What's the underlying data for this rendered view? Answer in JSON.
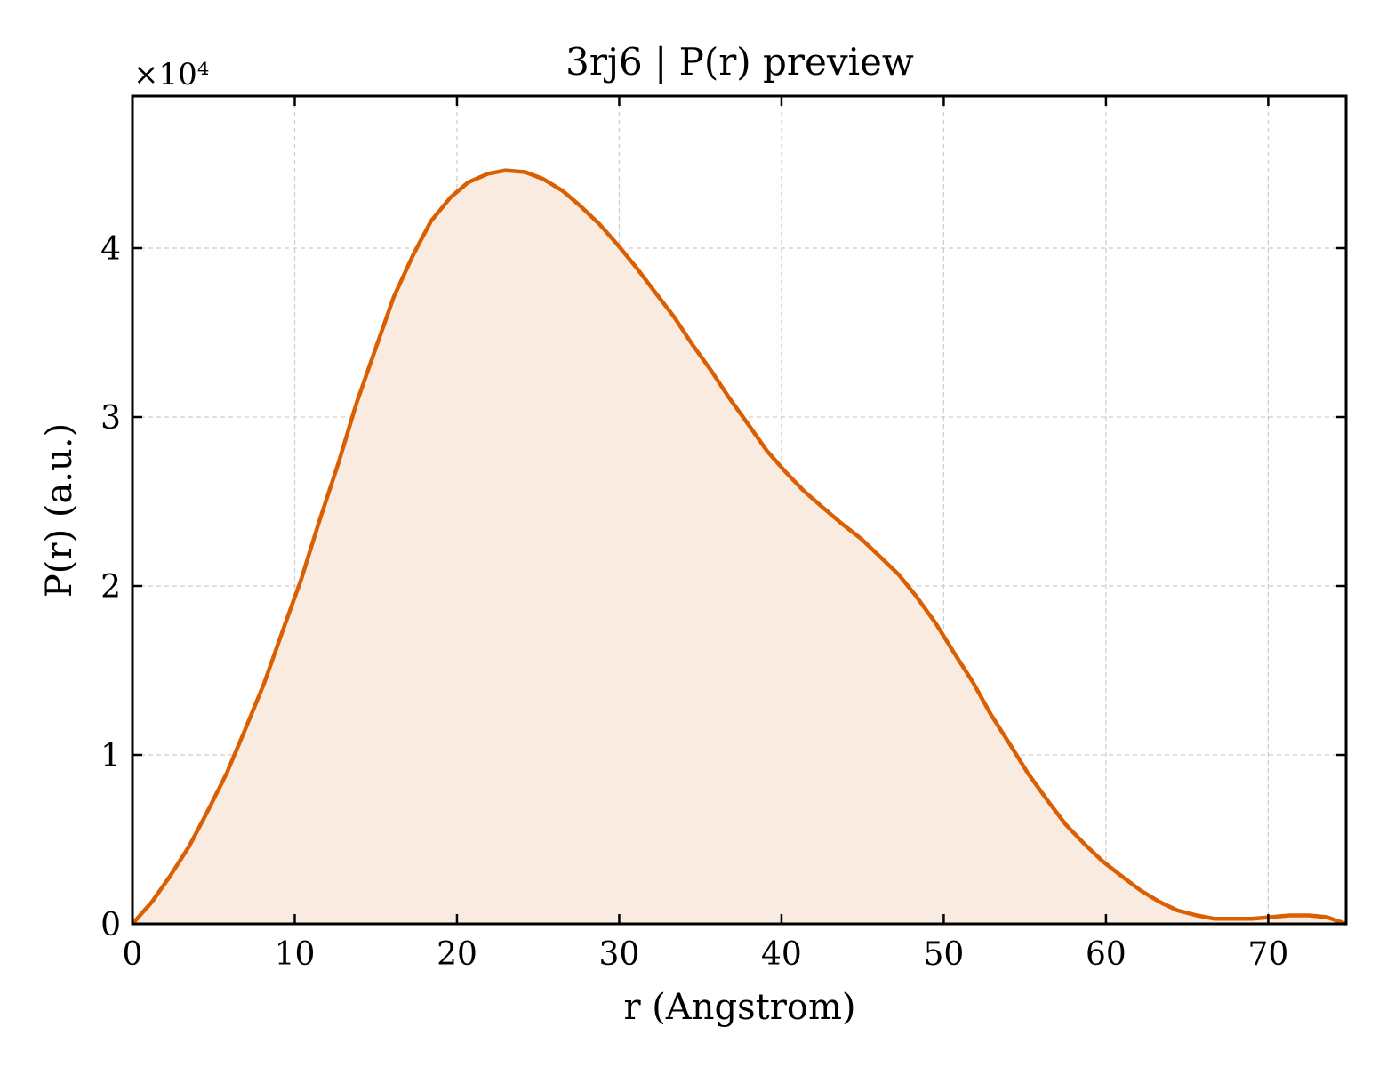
{
  "chart_data": {
    "type": "area",
    "title": "3rj6 | P(r) preview",
    "xlabel": "r (Angstrom)",
    "ylabel": "P(r) (a.u.)",
    "y_scale_label": "×10⁴",
    "y_multiplier": 10000,
    "xlim": [
      0,
      74.8
    ],
    "ylim": [
      0,
      4.9
    ],
    "x_ticks": [
      0,
      10,
      20,
      30,
      40,
      50,
      60,
      70
    ],
    "x_tick_labels": [
      "0",
      "10",
      "20",
      "30",
      "40",
      "50",
      "60",
      "70"
    ],
    "y_ticks": [
      0,
      1,
      2,
      3,
      4
    ],
    "y_tick_labels": [
      "0",
      "1",
      "2",
      "3",
      "4"
    ],
    "grid": true,
    "line_color": "#d95f02",
    "fill_color": "#f9ebe0",
    "series": [
      {
        "x": [
          0,
          1.2,
          2.3,
          3.5,
          4.6,
          5.8,
          6.9,
          8.1,
          9.2,
          10.4,
          11.5,
          12.7,
          13.8,
          15.0,
          16.1,
          17.3,
          18.4,
          19.6,
          20.7,
          21.9,
          23.0,
          24.2,
          25.3,
          26.5,
          27.6,
          28.8,
          29.9,
          31.1,
          32.2,
          33.4,
          34.5,
          35.7,
          36.8,
          38.0,
          39.1,
          40.3,
          41.4,
          42.6,
          43.7,
          44.9,
          46.0,
          47.2,
          48.3,
          49.5,
          50.6,
          51.8,
          52.9,
          54.1,
          55.2,
          56.4,
          57.5,
          58.7,
          59.8,
          61.0,
          62.1,
          63.3,
          64.4,
          65.6,
          66.7,
          67.9,
          69.0,
          70.2,
          71.3,
          72.5,
          73.6,
          74.8
        ],
        "y": [
          0,
          0.13,
          0.28,
          0.46,
          0.66,
          0.89,
          1.14,
          1.42,
          1.72,
          2.04,
          2.38,
          2.73,
          3.08,
          3.41,
          3.71,
          3.96,
          4.16,
          4.3,
          4.39,
          4.44,
          4.46,
          4.45,
          4.41,
          4.34,
          4.25,
          4.14,
          4.02,
          3.88,
          3.74,
          3.59,
          3.43,
          3.27,
          3.11,
          2.95,
          2.8,
          2.67,
          2.56,
          2.46,
          2.37,
          2.28,
          2.18,
          2.07,
          1.94,
          1.78,
          1.61,
          1.43,
          1.24,
          1.06,
          0.89,
          0.73,
          0.59,
          0.47,
          0.37,
          0.28,
          0.2,
          0.13,
          0.08,
          0.05,
          0.03,
          0.03,
          0.03,
          0.04,
          0.05,
          0.05,
          0.04,
          0
        ]
      }
    ]
  }
}
